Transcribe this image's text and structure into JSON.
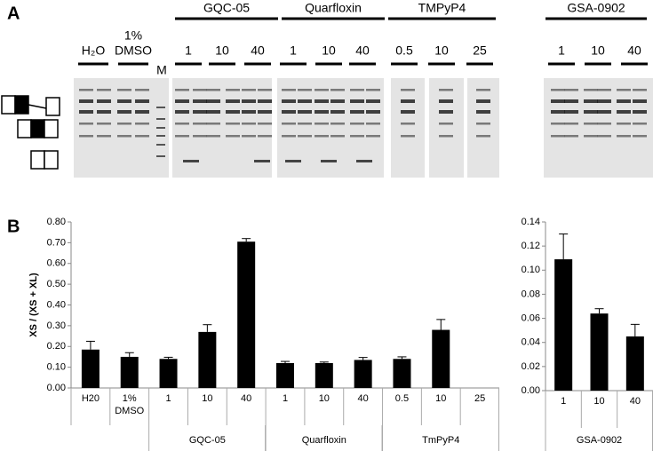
{
  "panel_a": {
    "panel_label": "A",
    "controls": [
      {
        "lines": [
          "H₂O"
        ]
      },
      {
        "lines": [
          "1%",
          "DMSO"
        ]
      }
    ],
    "marker": "M",
    "groups": [
      {
        "name": "GQC-05",
        "lanes": [
          "1",
          "10",
          "40"
        ]
      },
      {
        "name": "Quarfloxin",
        "lanes": [
          "1",
          "10",
          "40"
        ]
      },
      {
        "name": "TMPyP4",
        "lanes": [
          "0.5",
          "10",
          "25"
        ]
      },
      {
        "name": "GSA-0902",
        "lanes": [
          "1",
          "10",
          "40"
        ]
      }
    ]
  },
  "panel_b": {
    "panel_label": "B"
  },
  "chart_data": [
    {
      "type": "bar",
      "y_label": "XS / (XS + XL)",
      "categories": [
        "H20",
        "1% DMSO",
        "1",
        "10",
        "40",
        "1",
        "10",
        "40",
        "0.5",
        "10",
        "25"
      ],
      "groups": [
        {
          "name": "GQC-05",
          "start": 2,
          "end": 4
        },
        {
          "name": "Quarfloxin",
          "start": 5,
          "end": 7
        },
        {
          "name": "TmPyP4",
          "start": 8,
          "end": 10
        }
      ],
      "values": [
        0.185,
        0.15,
        0.14,
        0.27,
        0.705,
        0.12,
        0.12,
        0.135,
        0.14,
        0.28,
        null
      ],
      "errors": [
        0.04,
        0.02,
        0.008,
        0.035,
        0.015,
        0.008,
        0.005,
        0.012,
        0.01,
        0.05,
        null
      ],
      "color": "#000000",
      "ylim": [
        0,
        0.8
      ],
      "yticks": [
        {
          "value": 0,
          "label": "0.00"
        },
        {
          "value": 0.1,
          "label": "0.10"
        },
        {
          "value": 0.2,
          "label": "0.20"
        },
        {
          "value": 0.3,
          "label": "0.30"
        },
        {
          "value": 0.4,
          "label": "0.40"
        },
        {
          "value": 0.5,
          "label": "0.50"
        },
        {
          "value": 0.6,
          "label": "0.60"
        },
        {
          "value": 0.7,
          "label": "0.70"
        },
        {
          "value": 0.8,
          "label": "0.80"
        }
      ]
    },
    {
      "type": "bar",
      "categories": [
        "1",
        "10",
        "40"
      ],
      "groups": [
        {
          "name": "GSA-0902",
          "start": 0,
          "end": 2
        }
      ],
      "values": [
        0.109,
        0.064,
        0.045
      ],
      "errors": [
        0.021,
        0.004,
        0.01
      ],
      "color": "#000000",
      "ylim": [
        0,
        0.14
      ],
      "yticks": [
        {
          "value": 0,
          "label": "0.00"
        },
        {
          "value": 0.02,
          "label": "0.02"
        },
        {
          "value": 0.04,
          "label": "0.04"
        },
        {
          "value": 0.06,
          "label": "0.06"
        },
        {
          "value": 0.08,
          "label": "0.08"
        },
        {
          "value": 0.1,
          "label": "0.10"
        },
        {
          "value": 0.12,
          "label": "0.12"
        },
        {
          "value": 0.14,
          "label": "0.14"
        }
      ]
    }
  ]
}
